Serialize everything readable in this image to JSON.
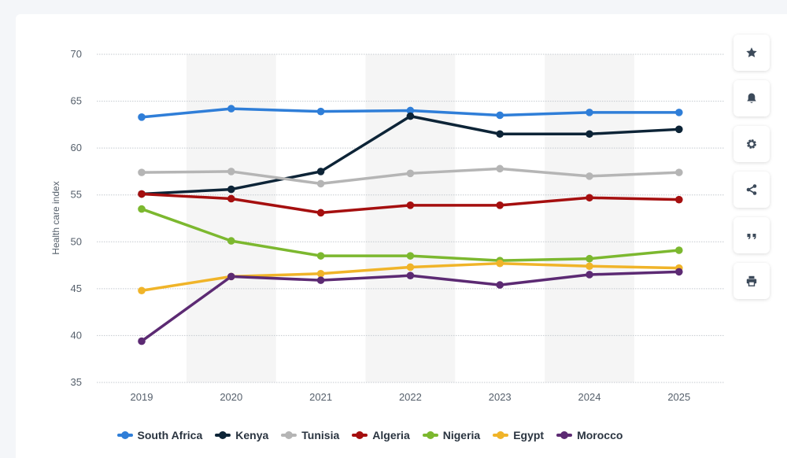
{
  "chart_data": {
    "type": "line",
    "ylabel": "Health care index",
    "xlabel": "",
    "x": [
      "2019",
      "2020",
      "2021",
      "2022",
      "2023",
      "2024",
      "2025"
    ],
    "ylim": [
      35,
      70
    ],
    "yticks": [
      35,
      40,
      45,
      50,
      55,
      60,
      65,
      70
    ],
    "grid": true,
    "legend_position": "bottom",
    "series": [
      {
        "name": "South Africa",
        "color": "#2f7ed8",
        "values": [
          63.3,
          64.2,
          63.9,
          64.0,
          63.5,
          63.8,
          63.8
        ]
      },
      {
        "name": "Kenya",
        "color": "#0d2437",
        "values": [
          55.1,
          55.6,
          57.5,
          63.4,
          61.5,
          61.5,
          62.0
        ]
      },
      {
        "name": "Tunisia",
        "color": "#b5b5b5",
        "values": [
          57.4,
          57.5,
          56.2,
          57.3,
          57.8,
          57.0,
          57.4
        ]
      },
      {
        "name": "Algeria",
        "color": "#a50f0f",
        "values": [
          55.1,
          54.6,
          53.1,
          53.9,
          53.9,
          54.7,
          54.5
        ]
      },
      {
        "name": "Nigeria",
        "color": "#7cb82f",
        "values": [
          53.5,
          50.1,
          48.5,
          48.5,
          48.0,
          48.2,
          49.1
        ]
      },
      {
        "name": "Egypt",
        "color": "#f0b429",
        "values": [
          44.8,
          46.3,
          46.6,
          47.3,
          47.7,
          47.4,
          47.2
        ]
      },
      {
        "name": "Morocco",
        "color": "#5c2a73",
        "values": [
          39.4,
          46.3,
          45.9,
          46.4,
          45.4,
          46.5,
          46.8
        ]
      }
    ]
  },
  "toolbar": [
    {
      "icon": "star-icon",
      "name": "favorite-button"
    },
    {
      "icon": "bell-icon",
      "name": "notification-button"
    },
    {
      "icon": "gear-icon",
      "name": "settings-button"
    },
    {
      "icon": "share-icon",
      "name": "share-button"
    },
    {
      "icon": "quote-icon",
      "name": "cite-button"
    },
    {
      "icon": "print-icon",
      "name": "print-button"
    }
  ]
}
